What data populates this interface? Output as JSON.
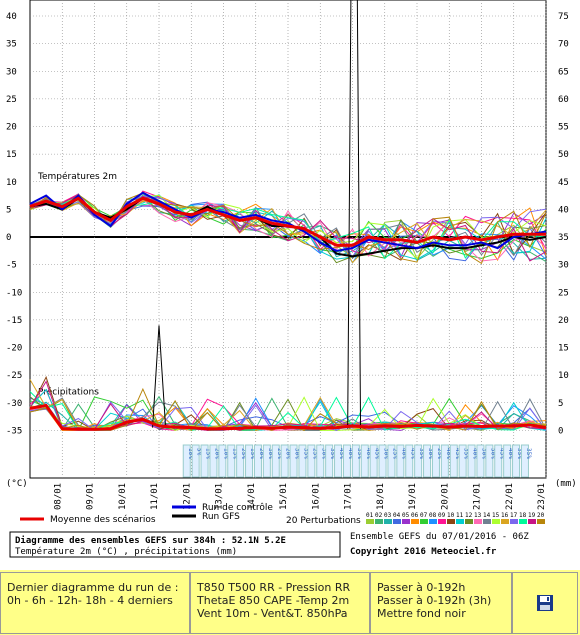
{
  "chart_data": {
    "type": "line",
    "left_axis_label": "(°C)",
    "right_axis_label": "(mm)",
    "left_ticks": [
      40,
      35,
      30,
      25,
      20,
      15,
      10,
      5,
      0,
      -5,
      -10,
      -15,
      -20,
      -25,
      -30,
      -35
    ],
    "right_ticks": [
      75,
      70,
      65,
      60,
      55,
      50,
      45,
      40,
      35,
      30,
      25,
      20,
      15,
      10,
      5,
      0
    ],
    "x_dates": [
      "08/01",
      "09/01",
      "10/01",
      "11/01",
      "12/01",
      "13/01",
      "14/01",
      "15/01",
      "16/01",
      "17/01",
      "18/01",
      "19/01",
      "20/01",
      "21/01",
      "22/01",
      "23/01"
    ],
    "ylim": [
      -35,
      40
    ],
    "temp_label": "Températures 2m",
    "precip_label": "Précipitations",
    "temp_x_days": [
      0,
      0.5,
      1,
      1.5,
      2,
      2.5,
      3,
      3.5,
      4,
      4.5,
      5,
      5.5,
      6,
      6.5,
      7,
      7.5,
      8,
      8.5,
      9,
      9.5,
      10,
      10.5,
      11,
      11.5,
      12,
      12.5,
      13,
      13.5,
      14,
      14.5,
      15,
      15.5,
      16
    ],
    "mean_temp": [
      5.5,
      6.5,
      5.5,
      7,
      4.5,
      3,
      5.5,
      7,
      6,
      4.5,
      4,
      5,
      4,
      3,
      3.5,
      2.5,
      2,
      1.5,
      0,
      -1.5,
      -1.5,
      0,
      -0.5,
      -0.5,
      -1,
      0,
      -0.5,
      0,
      -0.5,
      0,
      0.5,
      0.5,
      0.5
    ],
    "control_temp": [
      6,
      7.5,
      5,
      7.5,
      4,
      2,
      6,
      8,
      6.5,
      5,
      3.5,
      5,
      4.5,
      3.5,
      4,
      3,
      2.5,
      1,
      -1,
      -2.5,
      -2,
      -0.5,
      -1,
      -1.5,
      -2,
      -1,
      -1.5,
      -1.5,
      -1,
      -2,
      0,
      0.5,
      1
    ],
    "gfs_temp": [
      5.5,
      6,
      5,
      7,
      4.5,
      3.5,
      5,
      7,
      6,
      4.5,
      4,
      5.5,
      4,
      3,
      3.5,
      2,
      2,
      1.5,
      0,
      -3,
      -3.5,
      -3,
      -2.5,
      -2,
      -2,
      -1.5,
      -2,
      -2,
      -1.5,
      -1,
      0,
      -0.5,
      0
    ],
    "mean_precip_mm": [
      4,
      4.5,
      0.3,
      0.2,
      0.2,
      0.3,
      1.5,
      2,
      0.8,
      0.6,
      0.5,
      0.3,
      0.3,
      0.4,
      0.5,
      0.4,
      0.6,
      0.5,
      0.4,
      0.5,
      0.8,
      0.6,
      0.8,
      0.7,
      0.9,
      0.8,
      0.6,
      0.8,
      0.7,
      0.8,
      0.8,
      1,
      0.5
    ],
    "gfs_precip_spike_mm": [
      0,
      0,
      0,
      0,
      0,
      0,
      0,
      0,
      0,
      0,
      0,
      0,
      0,
      0,
      0,
      0,
      0,
      0,
      0,
      0,
      0,
      0,
      0,
      0,
      0,
      0,
      0,
      0,
      0,
      0,
      0,
      0,
      0
    ],
    "member_colors": [
      "#9acd32",
      "#3cb371",
      "#20b2aa",
      "#4169e1",
      "#9932cc",
      "#ff8c00",
      "#32cd32",
      "#1e90ff",
      "#ff1493",
      "#8b4513",
      "#00ced1",
      "#6b8e23",
      "#ff69b4",
      "#708090",
      "#adff2f",
      "#daa520",
      "#7b68ee",
      "#00fa9a",
      "#c71585",
      "#b8860b"
    ],
    "precip_prob_labels": [
      "10%",
      "5%",
      "15%",
      "20%",
      "10%",
      "15%",
      "25%",
      "15%",
      "20%",
      "30%",
      "25%",
      "20%",
      "30%",
      "35%",
      "25%",
      "30%",
      "35%",
      "45%",
      "40%",
      "35%",
      "40%",
      "45%",
      "30%",
      "25%",
      "40%",
      "45%",
      "35%",
      "30%",
      "25%",
      "40%",
      "45%",
      "35%",
      "40%",
      "30%",
      "50%",
      "45%",
      "40%",
      "35%",
      "35%"
    ],
    "mean_color": "#e80000",
    "control_color": "#0000dd",
    "gfs_color": "#000000"
  },
  "legend": {
    "mean_label": "Moyenne des scénarios",
    "control_label": "Run de contrôle",
    "gfs_label": "Run GFS",
    "perturb_label": "20 Perturbations",
    "perturb_numbers": [
      "01",
      "02",
      "03",
      "04",
      "05",
      "06",
      "07",
      "08",
      "09",
      "10",
      "11",
      "12",
      "13",
      "14",
      "15",
      "16",
      "17",
      "18",
      "19",
      "20"
    ]
  },
  "info": {
    "title": "Diagramme des ensembles GEFS sur 384h : 52.1N 5.2E",
    "subtitle": "Température 2m (°C) , précipitations (mm)",
    "run": "Ensemble GEFS du 07/01/2016 - 06Z",
    "copyright": "Copyright 2016 Meteociel.fr"
  },
  "footer": {
    "cell1_line1": "Dernier diagramme du run de :",
    "cell1_line2": "0h - 6h - 12h- 18h - 4 derniers",
    "cell2_line1": "T850 T500 RR - Pression RR",
    "cell2_line2": "ThetaE 850 CAPE -Temp 2m",
    "cell2_line3": "Vent 10m - Vent&T. 850hPa",
    "cell3_line1": "Passer à 0-192h",
    "cell3_line2": "Passer à 0-192h (3h)",
    "cell3_line3": "Mettre fond noir",
    "save_icon": "floppy-disk-icon",
    "bg_color": "#ffff88"
  }
}
